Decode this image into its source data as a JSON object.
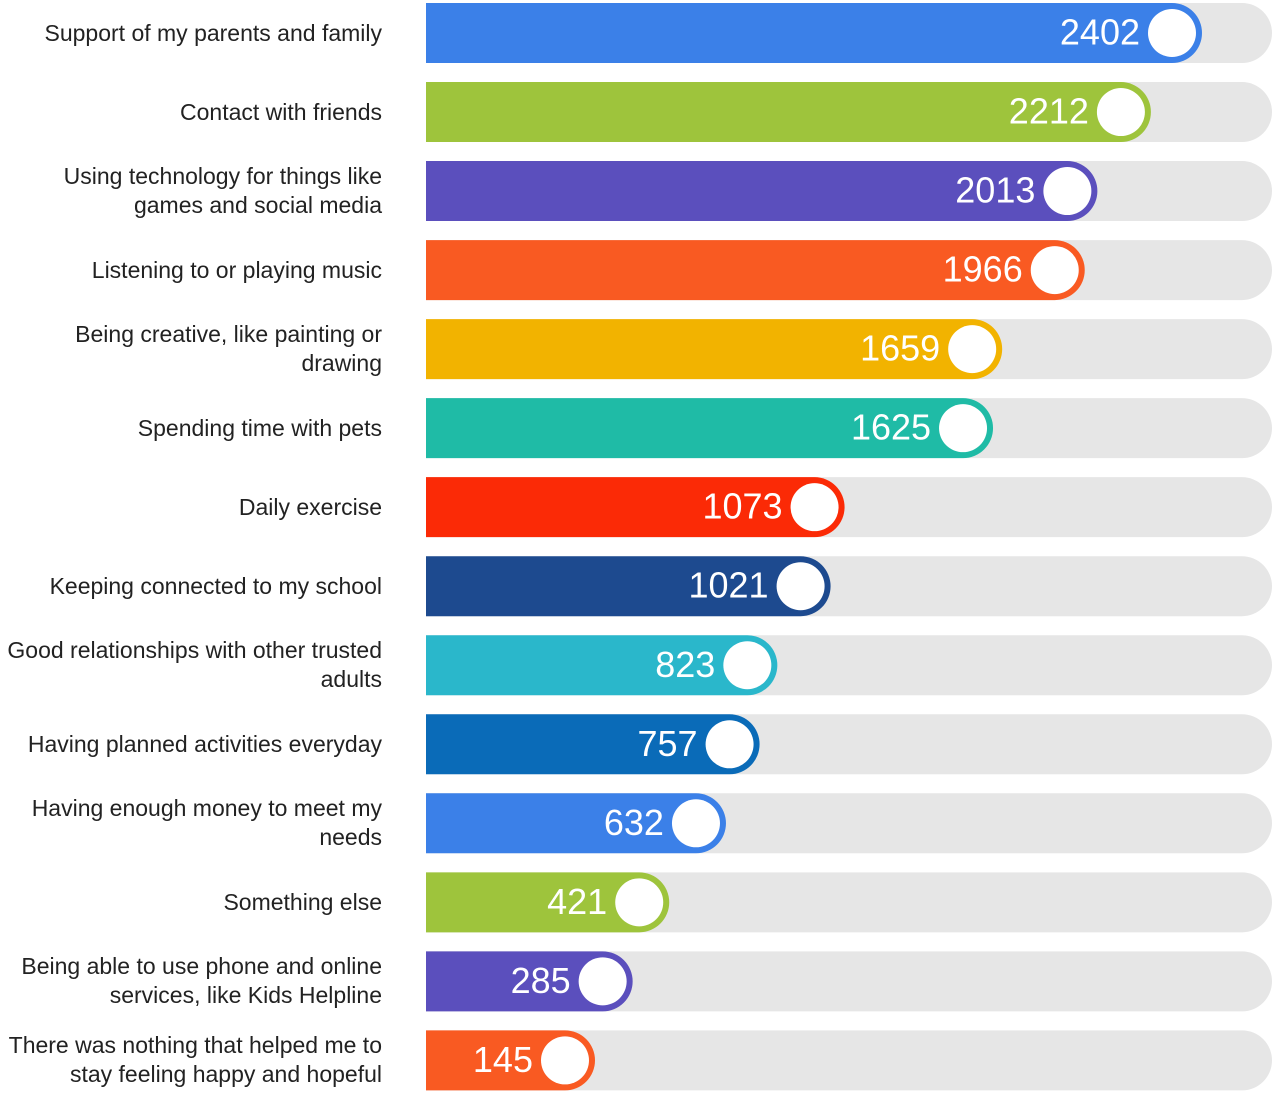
{
  "chart_data": {
    "type": "bar",
    "orientation": "horizontal",
    "categories": [
      "Support of my parents and family",
      "Contact with friends",
      "Using technology for things like games and social media",
      "Listening to or playing music",
      "Being creative, like painting or drawing",
      "Spending time with pets",
      "Daily exercise",
      "Keeping connected to my school",
      "Good relationships with other trusted adults",
      "Having planned activities everyday",
      "Having enough money to meet my needs",
      "Something else",
      "Being able to use phone and online services, like Kids Helpline",
      "There was nothing that helped me to stay feeling happy and hopeful"
    ],
    "values": [
      2402,
      2212,
      2013,
      1966,
      1659,
      1625,
      1073,
      1021,
      823,
      757,
      632,
      421,
      285,
      145
    ],
    "colors": [
      "#3b80e8",
      "#9ec43c",
      "#5b4fbd",
      "#f95a22",
      "#f2b300",
      "#1fbba6",
      "#fb2a06",
      "#1d4a8f",
      "#2ab7cb",
      "#0a6bb8",
      "#3b80e8",
      "#9ec43c",
      "#5b4fbd",
      "#f95a22"
    ]
  }
}
